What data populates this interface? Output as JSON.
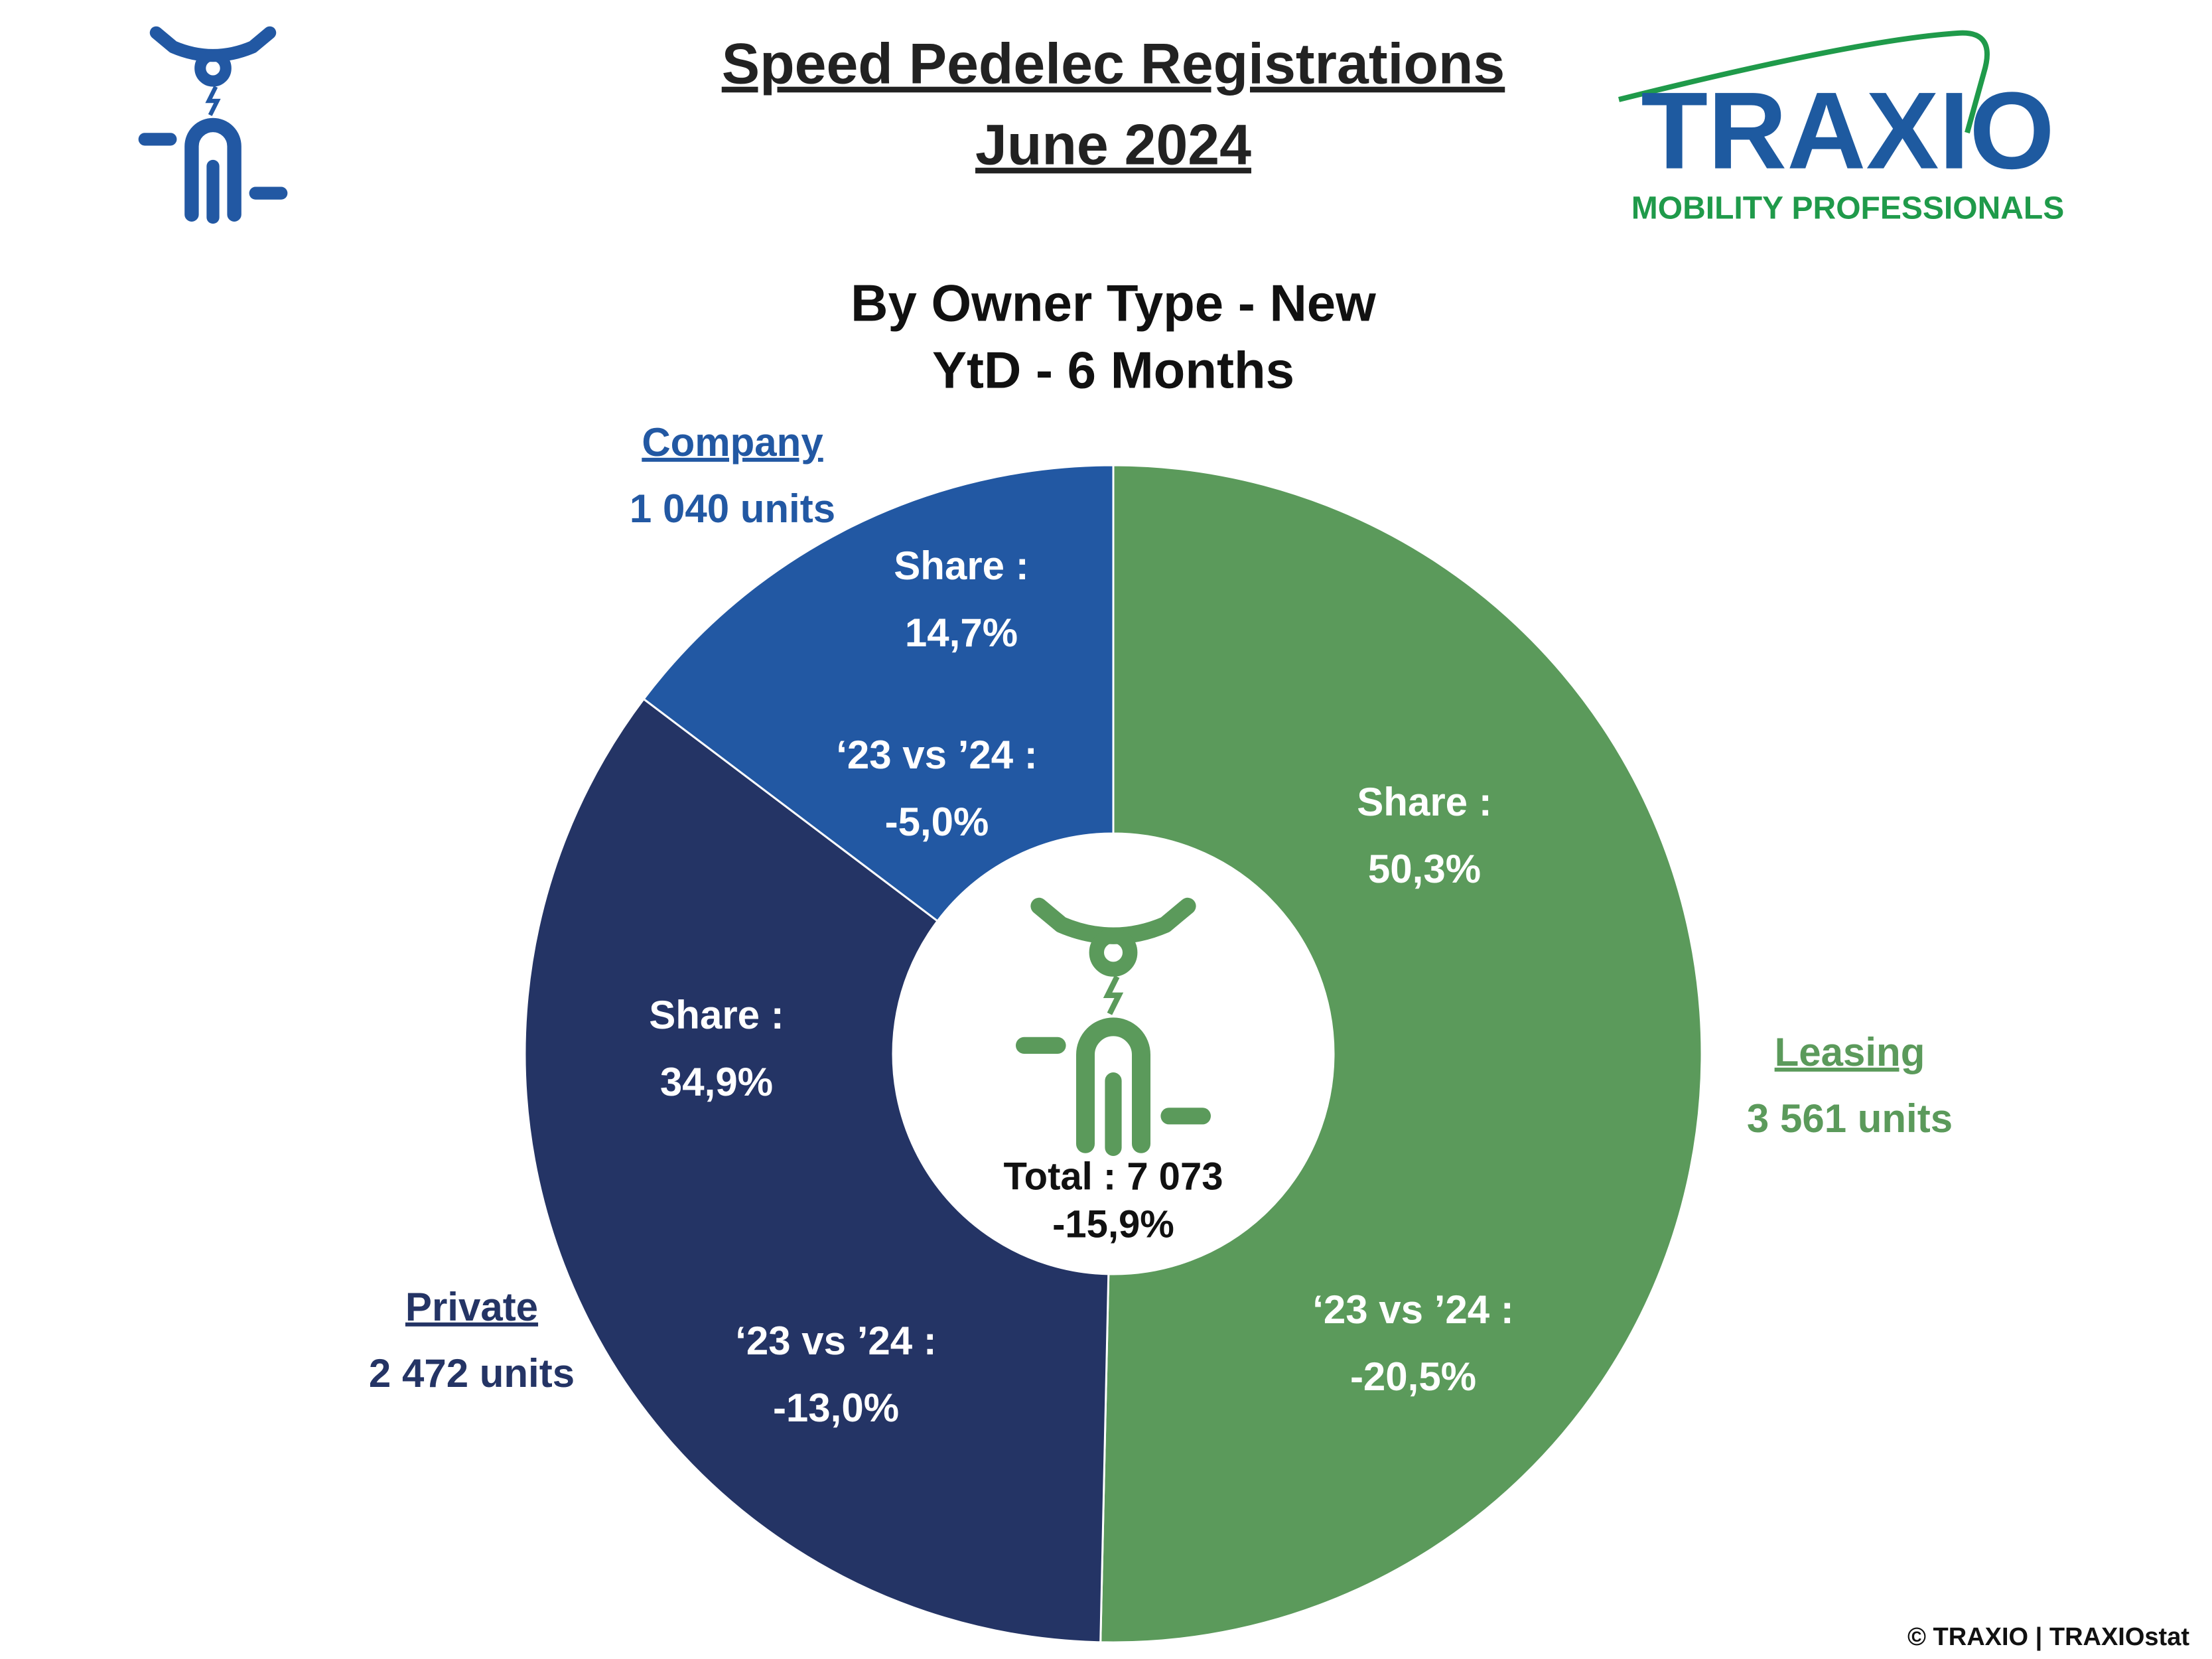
{
  "chart_data": {
    "type": "donut",
    "title": "Speed Pedelec Registrations",
    "subtitle": "June 2024",
    "chart_title": "By Owner Type - New",
    "chart_subtitle": "YtD - 6 Months",
    "categories": [
      "Leasing",
      "Private",
      "Company"
    ],
    "values": [
      3561,
      2472,
      1040
    ],
    "value_labels": [
      "3 561 units",
      "2 472 units",
      "1 040 units"
    ],
    "colors": [
      "#5b9a5b",
      "#243465",
      "#2258a3"
    ],
    "share_title": "Share :",
    "shares": [
      50.3,
      34.9,
      14.7
    ],
    "share_labels": [
      "50,3%",
      "34,9%",
      "14,7%"
    ],
    "change_title": "‘23 vs ’24 :",
    "changes": [
      -20.5,
      -13.0,
      -5.0
    ],
    "change_labels": [
      "-20,5%",
      "-13,0%",
      "-5,0%"
    ],
    "total": {
      "value": 7073,
      "label": "Total : 7 073"
    },
    "total_change": {
      "value": -15.9,
      "label": "-15,9%"
    }
  },
  "logo": {
    "name": "TRAXIO",
    "tagline": "MOBILITY PROFESSIONALS"
  },
  "footer": "© TRAXIO | TRAXIOstat"
}
